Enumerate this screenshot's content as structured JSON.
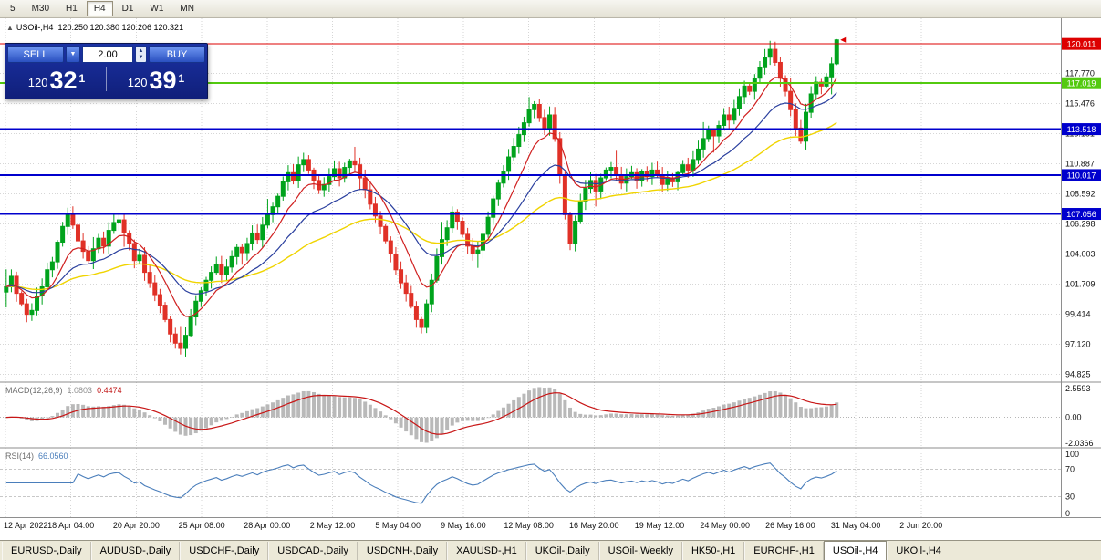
{
  "toolbar": {
    "periods": [
      "5",
      "M30",
      "H1",
      "H4",
      "D1",
      "W1",
      "MN"
    ],
    "active_period": "H4"
  },
  "chart": {
    "symbol_title": "USOil-,H4",
    "ohlc": "120.250 120.380 120.206 120.321",
    "trade_panel": {
      "sell_label": "SELL",
      "buy_label": "BUY",
      "volume": "2.00",
      "bid": {
        "prefix": "120",
        "big": "32",
        "sup": "1"
      },
      "ask": {
        "prefix": "120",
        "big": "39",
        "sup": "1"
      }
    },
    "price_axis": {
      "labels": [
        117.77,
        115.476,
        113.181,
        110.887,
        108.592,
        106.298,
        104.003,
        101.709,
        99.414,
        97.12,
        94.825
      ],
      "badges": [
        {
          "value": "120.011",
          "color": "#dd0000",
          "text": "#ffffff"
        },
        {
          "value": "117.019",
          "color": "#53ca0f",
          "text": "#ffffff"
        },
        {
          "value": "113.518",
          "color": "#0000cd",
          "text": "#ffffff"
        },
        {
          "value": "110.017",
          "color": "#0000cd",
          "text": "#ffffff"
        },
        {
          "value": "107.056",
          "color": "#0000cd",
          "text": "#ffffff"
        }
      ]
    },
    "hlines": [
      {
        "price": 120.011,
        "color": "#dd0000",
        "width": 1
      },
      {
        "price": 117.019,
        "color": "#53ca0f",
        "width": 2
      },
      {
        "price": 113.518,
        "color": "#0000cd",
        "width": 2
      },
      {
        "price": 110.017,
        "color": "#0000cd",
        "width": 2
      },
      {
        "price": 107.056,
        "color": "#0000cd",
        "width": 2
      }
    ],
    "time_labels": [
      "12 Apr 2022",
      "18 Apr 04:00",
      "20 Apr 20:00",
      "25 Apr 08:00",
      "28 Apr 00:00",
      "2 May 12:00",
      "5 May 04:00",
      "9 May 16:00",
      "12 May 08:00",
      "16 May 20:00",
      "19 May 12:00",
      "24 May 00:00",
      "26 May 16:00",
      "31 May 04:00",
      "2 Jun 20:00"
    ],
    "colors": {
      "up": "#00a31c",
      "down": "#e03127",
      "ma_fast": "#d02020",
      "ma_mid": "#2a3f9e",
      "ma_slow": "#f0d400",
      "macd_hist": "#b9b9b9",
      "macd_signal": "#c81616",
      "rsi": "#4a7ebb",
      "grid": "#d6d6d6",
      "marker": "#dd0000"
    }
  },
  "chart_data": {
    "type": "candlestick",
    "symbol": "USOil-",
    "timeframe": "H4",
    "price_range": [
      94.3,
      121.9
    ],
    "closes": [
      101.5,
      102.3,
      101.0,
      100.2,
      99.4,
      99.7,
      100.8,
      101.5,
      102.8,
      103.4,
      104.9,
      106.1,
      107.0,
      106.2,
      105.0,
      104.2,
      103.5,
      104.4,
      105.2,
      104.6,
      105.8,
      106.4,
      106.6,
      105.6,
      104.8,
      103.5,
      103.9,
      102.6,
      101.8,
      100.9,
      100.1,
      99.0,
      97.9,
      97.2,
      96.8,
      97.8,
      99.2,
      100.4,
      101.2,
      102.0,
      102.6,
      103.2,
      102.4,
      103.0,
      103.8,
      104.5,
      104.1,
      104.8,
      105.6,
      105.1,
      106.2,
      107.0,
      107.6,
      108.4,
      109.5,
      110.2,
      109.6,
      110.8,
      111.2,
      110.4,
      109.6,
      108.9,
      109.3,
      109.9,
      110.5,
      109.8,
      110.6,
      111.1,
      110.8,
      109.8,
      108.9,
      107.8,
      106.9,
      106.1,
      105.0,
      104.0,
      102.8,
      101.8,
      101.0,
      100.0,
      99.0,
      98.4,
      100.2,
      102.0,
      103.8,
      105.1,
      106.0,
      107.2,
      106.5,
      105.5,
      104.6,
      104.0,
      104.3,
      105.5,
      106.8,
      108.2,
      109.4,
      110.3,
      111.4,
      112.2,
      113.1,
      114.0,
      115.0,
      115.4,
      114.4,
      113.6,
      114.6,
      112.8,
      110.0,
      107.0,
      104.8,
      106.5,
      108.0,
      109.0,
      109.6,
      108.8,
      109.8,
      110.4,
      110.6,
      110.0,
      109.4,
      109.9,
      110.2,
      109.6,
      110.3,
      109.9,
      110.4,
      110.0,
      109.3,
      109.8,
      109.5,
      110.2,
      110.8,
      110.4,
      111.2,
      112.0,
      112.8,
      113.4,
      113.0,
      113.8,
      114.6,
      114.2,
      115.1,
      116.0,
      116.8,
      116.4,
      117.4,
      118.2,
      119.0,
      119.6,
      118.6,
      117.4,
      116.4,
      115.0,
      113.6,
      112.6,
      114.8,
      116.2,
      117.1,
      116.8,
      117.5,
      118.5,
      120.32
    ],
    "last_bar_ohlc": {
      "open": 120.25,
      "high": 120.38,
      "low": 120.206,
      "close": 120.321
    }
  },
  "macd": {
    "label": "MACD(12,26,9)",
    "value_main": "1.0803",
    "value_signal": "0.4474",
    "axis": [
      "2.5593",
      "0.00",
      "-2.0366"
    ]
  },
  "rsi": {
    "label": "RSI(14)",
    "value": "66.0560",
    "axis": [
      "100",
      "70",
      "30",
      "0"
    ],
    "levels": [
      70,
      30
    ]
  },
  "tabs": [
    "EURUSD-,Daily",
    "AUDUSD-,Daily",
    "USDCHF-,Daily",
    "USDCAD-,Daily",
    "USDCNH-,Daily",
    "XAUUSD-,H1",
    "UKOil-,Daily",
    "USOil-,Weekly",
    "HK50-,H1",
    "EURCHF-,H1",
    "USOil-,H4",
    "UKOil-,H4"
  ],
  "active_tab": "USOil-,H4"
}
